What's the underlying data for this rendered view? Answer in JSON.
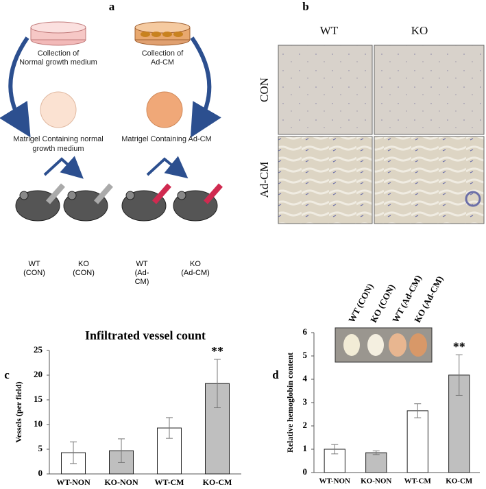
{
  "panel_labels": [
    "a",
    "b",
    "c",
    "d"
  ],
  "diagram": {
    "collection_normal": [
      "Collection of",
      "Normal growth medium"
    ],
    "collection_adcm": [
      "Collection of",
      "Ad-CM"
    ],
    "matrigel_normal": [
      "Matrigel Containing normal",
      "growth medium"
    ],
    "matrigel_adcm": [
      "Matrigel Containing Ad-CM"
    ],
    "mice": [
      [
        "WT",
        "(CON)"
      ],
      [
        "KO",
        "(CON)"
      ],
      [
        "WT",
        "(Ad-",
        "CM)"
      ],
      [
        "KO",
        "(Ad-CM)"
      ]
    ]
  },
  "micrographs": {
    "columns": [
      "WT",
      "KO"
    ],
    "rows": [
      "CON",
      "Ad-CM"
    ]
  },
  "chart_data": [
    {
      "type": "bar",
      "title": "Infiltrated vessel count",
      "y_label": "Vessels (per field)",
      "categories": [
        "WT-NON",
        "KO-NON",
        "WT-CM",
        "KO-CM"
      ],
      "values": [
        4.3,
        4.7,
        9.3,
        18.3
      ],
      "errors": [
        2.2,
        2.4,
        2.1,
        4.9
      ],
      "colors": [
        "#ffffff",
        "#bfbfbf",
        "#ffffff",
        "#bfbfbf"
      ],
      "annotations": [
        {
          "text": "**",
          "category": "KO-CM"
        }
      ],
      "ylim": [
        0,
        25
      ],
      "yticks": [
        0,
        5,
        10,
        15,
        20,
        25
      ]
    },
    {
      "type": "bar",
      "y_label": "Relative hemoglobin content",
      "categories": [
        "WT-NON",
        "KO-NON",
        "WT-CM",
        "KO-CM"
      ],
      "values": [
        1.0,
        0.85,
        2.65,
        4.18
      ],
      "errors": [
        0.2,
        0.08,
        0.3,
        0.87
      ],
      "colors": [
        "#ffffff",
        "#bfbfbf",
        "#ffffff",
        "#bfbfbf"
      ],
      "annotations": [
        {
          "text": "**",
          "category": "KO-CM"
        }
      ],
      "inset_labels": [
        "WT (CON)",
        "KO (CON)",
        "WT (Ad-CM)",
        "KO (Ad-CM)"
      ],
      "ylim": [
        0,
        6
      ],
      "yticks": [
        0,
        1,
        2,
        3,
        4,
        5,
        6
      ]
    }
  ]
}
